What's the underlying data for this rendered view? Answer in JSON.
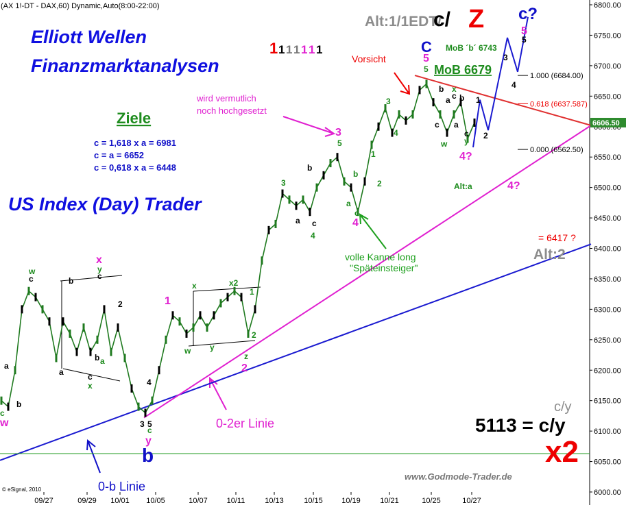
{
  "chart_data": {
    "type": "line",
    "title": "(AX 1!-DT - DAX,60) Dynamic,Auto(8:00-22:00)",
    "values": [
      6150,
      6140,
      6200,
      6300,
      6330,
      6320,
      6300,
      6280,
      6220,
      6280,
      6260,
      6230,
      6270,
      6230,
      6250,
      6300,
      6230,
      6270,
      6220,
      6170,
      6140,
      6130,
      6150,
      6200,
      6250,
      6290,
      6280,
      6260,
      6270,
      6290,
      6270,
      6290,
      6310,
      6320,
      6330,
      6320,
      6260,
      6300,
      6380,
      6430,
      6440,
      6490,
      6480,
      6470,
      6480,
      6460,
      6500,
      6520,
      6540,
      6550,
      6510,
      6500,
      6460,
      6510,
      6570,
      6600,
      6630,
      6590,
      6620,
      6610,
      6620,
      6660,
      6670,
      6640,
      6620,
      6590,
      6620,
      6640,
      6580,
      6606.5
    ],
    "color": "#1f7a1f",
    "xlim": [
      -0.2,
      85.8
    ],
    "ylim": [
      6000,
      6800
    ],
    "xticks": [
      {
        "value": 6.2,
        "label": "09/27"
      },
      {
        "value": 12.5,
        "label": "09/29"
      },
      {
        "value": 17.3,
        "label": "10/01"
      },
      {
        "value": 22.5,
        "label": "10/05"
      },
      {
        "value": 28.7,
        "label": "10/07"
      },
      {
        "value": 34.2,
        "label": "10/11"
      },
      {
        "value": 39.8,
        "label": "10/13"
      },
      {
        "value": 45.5,
        "label": "10/15"
      },
      {
        "value": 51,
        "label": "10/19"
      },
      {
        "value": 56.6,
        "label": "10/21"
      },
      {
        "value": 62.7,
        "label": "10/25"
      },
      {
        "value": 68.6,
        "label": "10/27"
      }
    ],
    "yticks": [
      {
        "value": 6000,
        "label": "6000.00"
      },
      {
        "value": 6050,
        "label": "6050.00"
      },
      {
        "value": 6100,
        "label": "6100.00"
      },
      {
        "value": 6150,
        "label": "6150.00"
      },
      {
        "value": 6200,
        "label": "6200.00"
      },
      {
        "value": 6250,
        "label": "6250.00"
      },
      {
        "value": 6300,
        "label": "6300.00"
      },
      {
        "value": 6350,
        "label": "6350.00"
      },
      {
        "value": 6400,
        "label": "6400.00"
      },
      {
        "value": 6450,
        "label": "6450.00"
      },
      {
        "value": 6500,
        "label": "6500.00"
      },
      {
        "value": 6550,
        "label": "6550.00"
      },
      {
        "value": 6600,
        "label": "6600.00"
      },
      {
        "value": 6650,
        "label": "6650.00"
      },
      {
        "value": 6700,
        "label": "6700.00"
      },
      {
        "value": 6750,
        "label": "6750.00"
      },
      {
        "value": 6800,
        "label": "6800.00"
      }
    ],
    "last_price": {
      "value": 6606.5,
      "label": "6606.50"
    },
    "trendlines": [
      {
        "color": "#1a1ad0",
        "x": [
          -0.2,
          86.0
        ],
        "y": [
          6052,
          6407
        ]
      },
      {
        "color": "#e020d0",
        "x": [
          20.8,
          86.0
        ],
        "y": [
          6122,
          6602
        ]
      },
      {
        "color": "#e03030",
        "x": [
          60.3,
          86.0
        ],
        "y": [
          6684,
          6602
        ]
      },
      {
        "color": "#1e9a1e",
        "x": [
          -0.2,
          85.8
        ],
        "y": [
          6063,
          6063
        ]
      },
      {
        "color": "#1a1ad0",
        "x": [
          68.8,
          69.8,
          71,
          73.8,
          75.3,
          76.8
        ],
        "y": [
          6566,
          6644,
          6594,
          6746,
          6690,
          6780
        ]
      }
    ],
    "fib_levels": [
      {
        "label": "1.000 (6684.00)",
        "value": 6684
      },
      {
        "label": "0.618 (6637.587)",
        "value": 6637.587
      },
      {
        "label": "0.000 (6562.50)",
        "value": 6562.5
      }
    ],
    "annotations": [
      "Alt:1/1EDT/",
      "c/",
      "Z",
      "c?",
      "5",
      "Elliott Wellen",
      "Finanzmarktanalysen",
      "Ziele",
      "c = 1,618 x a = 6981",
      "c = a = 6652",
      "c = 0,618 x a = 6448",
      "US Index (Day) Trader",
      "wird vermutlich",
      "noch hochgesetzt",
      "Vorsicht",
      "C",
      "MoB ´b´ 6743",
      "MoB 6679",
      "4?",
      "Alt:a",
      "4?",
      "= 6417 ?",
      "Alt:2",
      "volle Kanne long",
      "\"Späteinsteiger\"",
      "c/y",
      "5113 = c/y",
      "x2",
      "www.Godmode-Trader.de",
      "© eSignal, 2010",
      "0-2er Linie",
      "0-b Linie",
      "b"
    ],
    "degree_marks": [
      "1",
      "1",
      "1",
      "1",
      "1",
      "1",
      "1"
    ],
    "wave_labels": [
      "w",
      "c",
      "x",
      "y",
      "c",
      "2",
      "1",
      "x",
      "x2",
      "1",
      "2",
      "z",
      "2",
      "w",
      "y",
      "3",
      "b",
      "a",
      "c",
      "4",
      "3",
      "5",
      "b",
      "a",
      "c",
      "4",
      "1",
      "2",
      "3",
      "4",
      "5",
      "5",
      "b",
      "a",
      "x",
      "c",
      "b",
      "a",
      "c",
      "w",
      "c",
      "y",
      "1",
      "2",
      "3",
      "4",
      "5",
      "a",
      "b",
      "c",
      "w",
      "a",
      "b",
      "c",
      "x",
      "a",
      "b",
      "4",
      "3",
      "5",
      "c",
      "y"
    ]
  }
}
